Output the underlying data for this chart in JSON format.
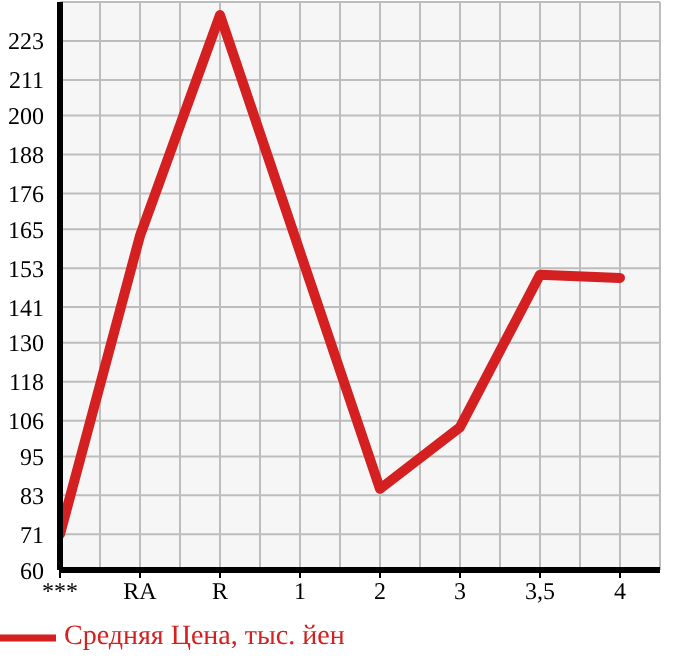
{
  "chart_data": {
    "type": "line",
    "categories": [
      "***",
      "RA",
      "R",
      "1",
      "2",
      "3",
      "3,5",
      "4"
    ],
    "series": [
      {
        "name": "Средняя Цена, тыс. йен",
        "color": "#d42020",
        "values": [
          71,
          163,
          231,
          158,
          85,
          104,
          151,
          150
        ]
      }
    ],
    "ylim": [
      60,
      235
    ],
    "yticks": [
      60,
      71,
      83,
      95,
      106,
      118,
      130,
      141,
      153,
      165,
      176,
      188,
      200,
      211,
      223,
      {
        "value": 235,
        "label": null
      }
    ],
    "grid": true,
    "legend": "bottom",
    "marker": "none",
    "line_style": "solid"
  }
}
